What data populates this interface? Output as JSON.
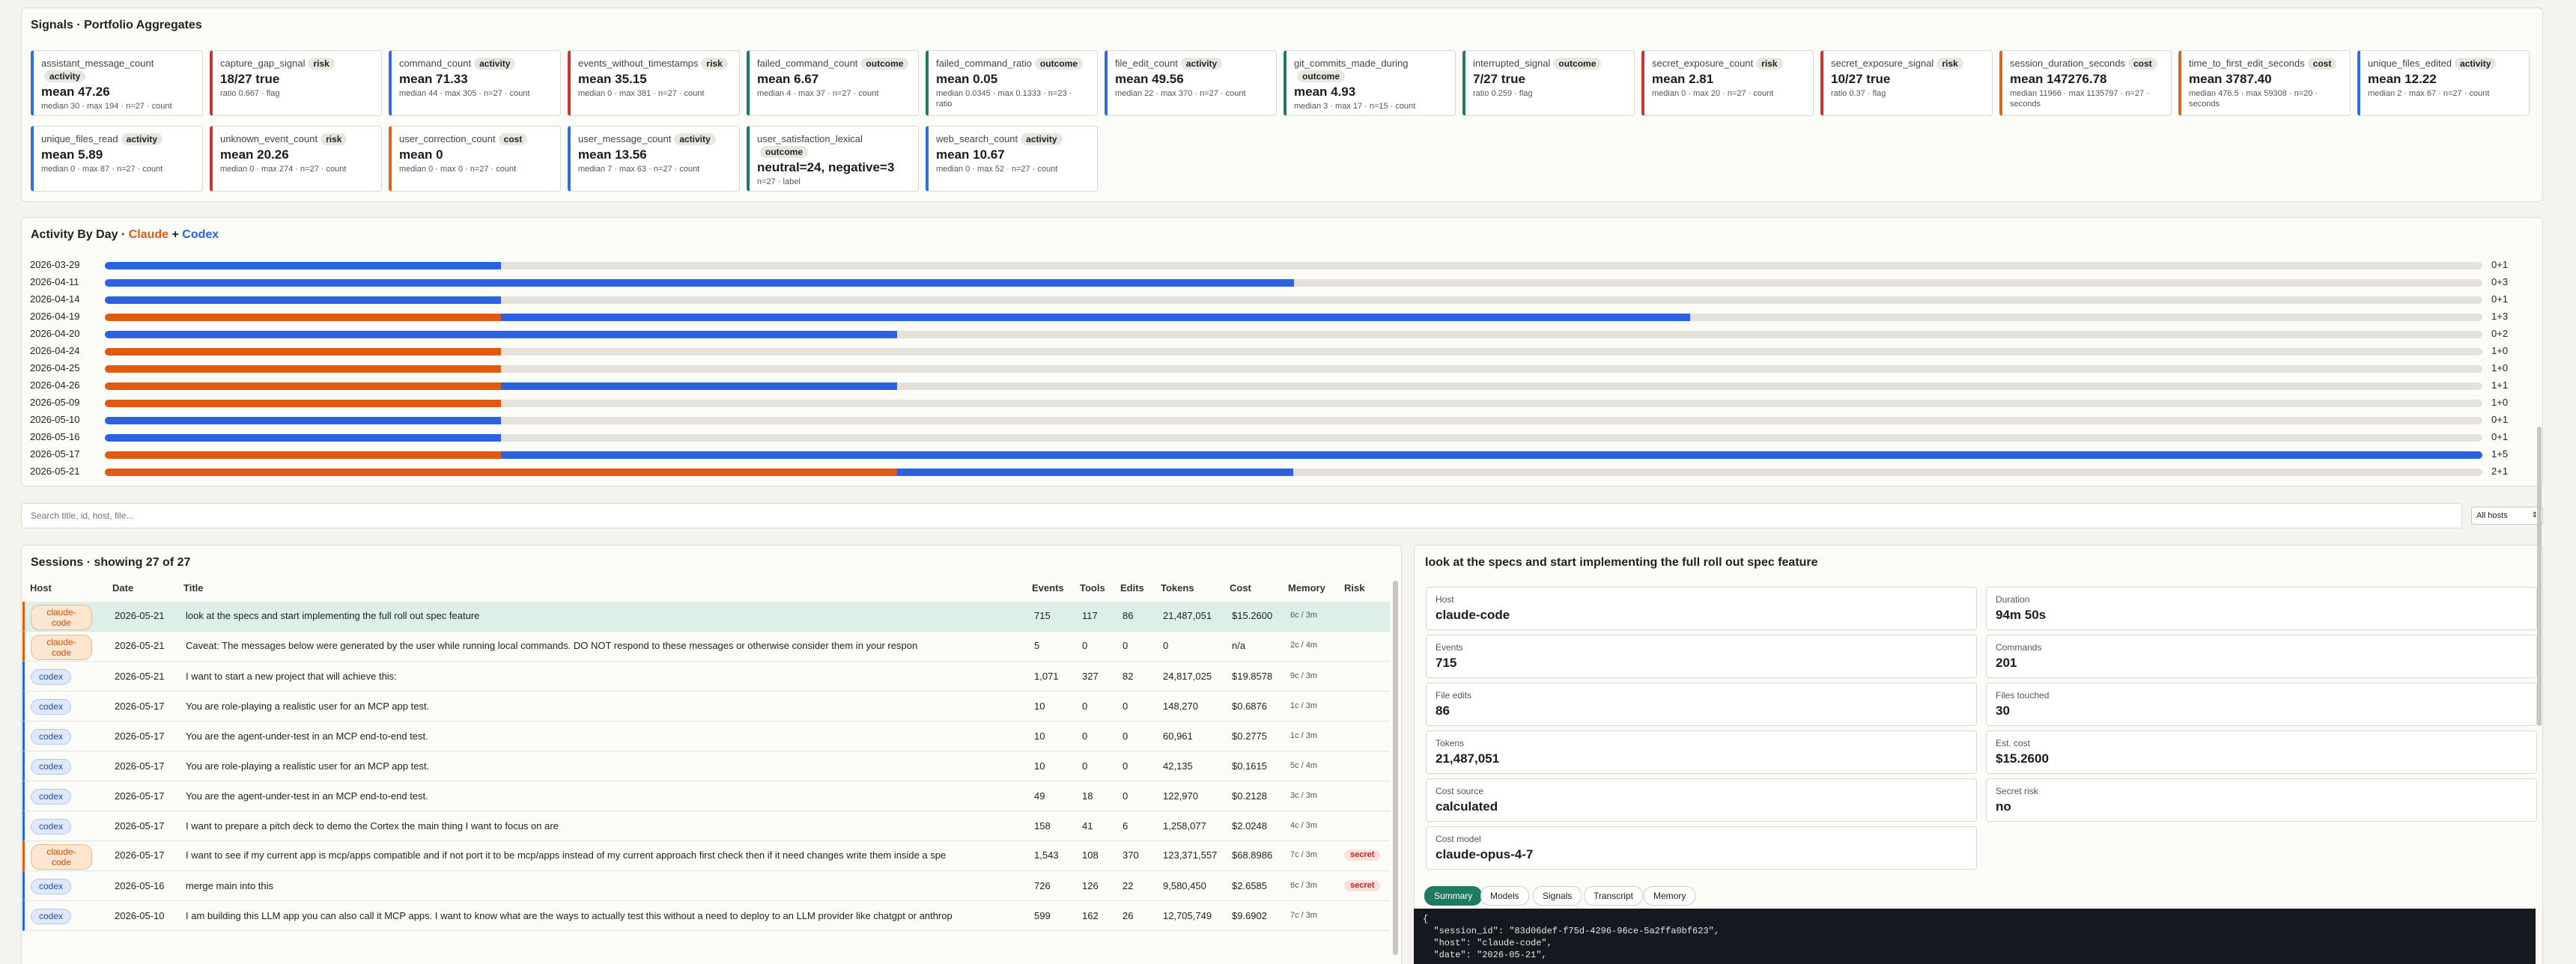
{
  "signals": {
    "title": "Signals · Portfolio Aggregates",
    "cards": [
      {
        "name": "assistant_message_count",
        "tag": "activity",
        "value": "mean 47.26",
        "sub": "median 30 · max 194 · n=27 · count"
      },
      {
        "name": "capture_gap_signal",
        "tag": "risk",
        "value": "18/27 true",
        "sub": "ratio 0.667 · flag"
      },
      {
        "name": "command_count",
        "tag": "activity",
        "value": "mean 71.33",
        "sub": "median 44 · max 305 · n=27 · count"
      },
      {
        "name": "events_without_timestamps",
        "tag": "risk",
        "value": "mean 35.15",
        "sub": "median 0 · max 381 · n=27 · count"
      },
      {
        "name": "failed_command_count",
        "tag": "outcome",
        "value": "mean 6.67",
        "sub": "median 4 · max 37 · n=27 · count"
      },
      {
        "name": "failed_command_ratio",
        "tag": "outcome",
        "value": "mean 0.05",
        "sub": "median 0.0345 · max 0.1333 · n=23 · ratio"
      },
      {
        "name": "file_edit_count",
        "tag": "activity",
        "value": "mean 49.56",
        "sub": "median 22 · max 370 · n=27 · count"
      },
      {
        "name": "git_commits_made_during",
        "tag": "outcome",
        "value": "mean 4.93",
        "sub": "median 3 · max 17 · n=15 · count"
      },
      {
        "name": "interrupted_signal",
        "tag": "outcome",
        "value": "7/27 true",
        "sub": "ratio 0.259 · flag"
      },
      {
        "name": "secret_exposure_count",
        "tag": "risk",
        "value": "mean 2.81",
        "sub": "median 0 · max 20 · n=27 · count"
      },
      {
        "name": "secret_exposure_signal",
        "tag": "risk",
        "value": "10/27 true",
        "sub": "ratio 0.37 · flag"
      },
      {
        "name": "session_duration_seconds",
        "tag": "cost",
        "value": "mean 147276.78",
        "sub": "median 11966 · max 1135797 · n=27 · seconds"
      },
      {
        "name": "time_to_first_edit_seconds",
        "tag": "cost",
        "value": "mean 3787.40",
        "sub": "median 476.5 · max 59308 · n=20 · seconds"
      },
      {
        "name": "unique_files_edited",
        "tag": "activity",
        "value": "mean 12.22",
        "sub": "median 2 · max 67 · n=27 · count"
      },
      {
        "name": "unique_files_read",
        "tag": "activity",
        "value": "mean 5.89",
        "sub": "median 0 · max 87 · n=27 · count"
      },
      {
        "name": "unknown_event_count",
        "tag": "risk",
        "value": "mean 20.26",
        "sub": "median 0 · max 274 · n=27 · count"
      },
      {
        "name": "user_correction_count",
        "tag": "cost",
        "value": "mean 0",
        "sub": "median 0 · max 0 · n=27 · count"
      },
      {
        "name": "user_message_count",
        "tag": "activity",
        "value": "mean 13.56",
        "sub": "median 7 · max 63 · n=27 · count"
      },
      {
        "name": "user_satisfaction_lexical",
        "tag": "outcome",
        "value": "neutral=24, negative=3",
        "sub": "n=27 · label"
      },
      {
        "name": "web_search_count",
        "tag": "activity",
        "value": "mean 10.67",
        "sub": "median 0 · max 52 · n=27 · count"
      }
    ]
  },
  "activity": {
    "title_prefix": "Activity By Day · ",
    "claude_label": "Claude",
    "plus": " + ",
    "codex_label": "Codex",
    "colors": {
      "claude": "#e15a12",
      "codex": "#2a63e0"
    },
    "scale_max": 6,
    "days": [
      {
        "date": "2026-03-29",
        "claude": 0,
        "codex": 1,
        "label": "0+1"
      },
      {
        "date": "2026-04-11",
        "claude": 0,
        "codex": 3,
        "label": "0+3"
      },
      {
        "date": "2026-04-14",
        "claude": 0,
        "codex": 1,
        "label": "0+1"
      },
      {
        "date": "2026-04-19",
        "claude": 1,
        "codex": 3,
        "label": "1+3"
      },
      {
        "date": "2026-04-20",
        "claude": 0,
        "codex": 2,
        "label": "0+2"
      },
      {
        "date": "2026-04-24",
        "claude": 1,
        "codex": 0,
        "label": "1+0"
      },
      {
        "date": "2026-04-25",
        "claude": 1,
        "codex": 0,
        "label": "1+0"
      },
      {
        "date": "2026-04-26",
        "claude": 1,
        "codex": 1,
        "label": "1+1"
      },
      {
        "date": "2026-05-09",
        "claude": 1,
        "codex": 0,
        "label": "1+0"
      },
      {
        "date": "2026-05-10",
        "claude": 0,
        "codex": 1,
        "label": "0+1"
      },
      {
        "date": "2026-05-16",
        "claude": 0,
        "codex": 1,
        "label": "0+1"
      },
      {
        "date": "2026-05-17",
        "claude": 1,
        "codex": 5,
        "label": "1+5"
      },
      {
        "date": "2026-05-21",
        "claude": 2,
        "codex": 1,
        "label": "2+1"
      }
    ]
  },
  "search": {
    "placeholder": "Search title, id, host, file...",
    "host_filter": "All hosts"
  },
  "sessions": {
    "title": "Sessions · showing 27 of 27",
    "columns": {
      "host": "Host",
      "date": "Date",
      "title": "Title",
      "events": "Events",
      "tools": "Tools",
      "edits": "Edits",
      "tokens": "Tokens",
      "cost": "Cost",
      "memory": "Memory",
      "risk": "Risk"
    },
    "rows": [
      {
        "host": "claude-code",
        "date": "2026-05-21",
        "title": "look at the specs and start implementing the full roll out spec feature",
        "events": "715",
        "tools": "117",
        "edits": "86",
        "tokens": "21,487,051",
        "cost": "$15.2600",
        "memory": "6c / 3m",
        "risk": ""
      },
      {
        "host": "claude-code",
        "date": "2026-05-21",
        "title": "Caveat: The messages below were generated by the user while running local commands. DO NOT respond to these messages or otherwise consider them in your respon",
        "events": "5",
        "tools": "0",
        "edits": "0",
        "tokens": "0",
        "cost": "n/a",
        "memory": "2c / 4m",
        "risk": ""
      },
      {
        "host": "codex",
        "date": "2026-05-21",
        "title": "I want to start a new project that will achieve this:",
        "events": "1,071",
        "tools": "327",
        "edits": "82",
        "tokens": "24,817,025",
        "cost": "$19.8578",
        "memory": "9c / 3m",
        "risk": ""
      },
      {
        "host": "codex",
        "date": "2026-05-17",
        "title": "You are role-playing a realistic user for an MCP app test.",
        "events": "10",
        "tools": "0",
        "edits": "0",
        "tokens": "148,270",
        "cost": "$0.6876",
        "memory": "1c / 3m",
        "risk": ""
      },
      {
        "host": "codex",
        "date": "2026-05-17",
        "title": "You are the agent-under-test in an MCP end-to-end test.",
        "events": "10",
        "tools": "0",
        "edits": "0",
        "tokens": "60,961",
        "cost": "$0.2775",
        "memory": "1c / 3m",
        "risk": ""
      },
      {
        "host": "codex",
        "date": "2026-05-17",
        "title": "You are role-playing a realistic user for an MCP app test.",
        "events": "10",
        "tools": "0",
        "edits": "0",
        "tokens": "42,135",
        "cost": "$0.1615",
        "memory": "5c / 4m",
        "risk": ""
      },
      {
        "host": "codex",
        "date": "2026-05-17",
        "title": "You are the agent-under-test in an MCP end-to-end test.",
        "events": "49",
        "tools": "18",
        "edits": "0",
        "tokens": "122,970",
        "cost": "$0.2128",
        "memory": "3c / 3m",
        "risk": ""
      },
      {
        "host": "codex",
        "date": "2026-05-17",
        "title": "I want to prepare a pitch deck to demo the Cortex the main thing I want to focus on are",
        "events": "158",
        "tools": "41",
        "edits": "6",
        "tokens": "1,258,077",
        "cost": "$2.0248",
        "memory": "4c / 3m",
        "risk": ""
      },
      {
        "host": "claude-code",
        "date": "2026-05-17",
        "title": "I want to see if my current app is mcp/apps compatible and if not port it to be mcp/apps instead of my current approach first check then if it need changes write them inside a spe",
        "events": "1,543",
        "tools": "108",
        "edits": "370",
        "tokens": "123,371,557",
        "cost": "$68.8986",
        "memory": "7c / 3m",
        "risk": "secret"
      },
      {
        "host": "codex",
        "date": "2026-05-16",
        "title": "merge main into this",
        "events": "726",
        "tools": "126",
        "edits": "22",
        "tokens": "9,580,450",
        "cost": "$2.6585",
        "memory": "6c / 3m",
        "risk": "secret"
      },
      {
        "host": "codex",
        "date": "2026-05-10",
        "title": "I am building this LLM app you can also call it MCP apps. I want to know what are the ways to actually test this without a need to deploy to an LLM provider like chatgpt or anthrop",
        "events": "599",
        "tools": "162",
        "edits": "26",
        "tokens": "12,705,749",
        "cost": "$9.6902",
        "memory": "7c / 3m",
        "risk": ""
      }
    ]
  },
  "detail": {
    "title": "look at the specs and start implementing the full roll out spec feature",
    "fields": [
      {
        "label": "Host",
        "value": "claude-code"
      },
      {
        "label": "Duration",
        "value": "94m 50s"
      },
      {
        "label": "Events",
        "value": "715"
      },
      {
        "label": "Commands",
        "value": "201"
      },
      {
        "label": "File edits",
        "value": "86"
      },
      {
        "label": "Files touched",
        "value": "30"
      },
      {
        "label": "Tokens",
        "value": "21,487,051"
      },
      {
        "label": "Est. cost",
        "value": "$15.2600"
      },
      {
        "label": "Cost source",
        "value": "calculated"
      },
      {
        "label": "Secret risk",
        "value": "no"
      },
      {
        "label": "Cost model",
        "value": "claude-opus-4-7"
      }
    ],
    "tabs": [
      "Summary",
      "Models",
      "Signals",
      "Transcript",
      "Memory"
    ],
    "json_lines": [
      "{",
      "  \"session_id\": \"83d06def-f75d-4296-96ce-5a2ffa0bf623\",",
      "  \"host\": \"claude-code\",",
      "  \"date\": \"2026-05-21\","
    ]
  }
}
